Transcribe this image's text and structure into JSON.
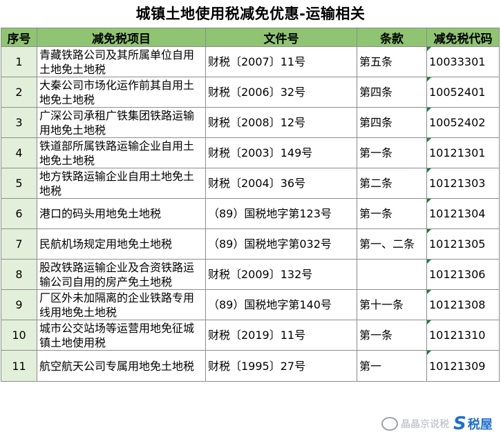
{
  "title": "城镇土地使用税减免优惠-运输相关",
  "headers": [
    "序号",
    "减免税项目",
    "文件号",
    "条款",
    "减免税代码"
  ],
  "rows": [
    {
      "seq": "1",
      "item": "青藏铁路公司及其所属单位自用土地免土地税",
      "doc": "财税〔2007〕11号",
      "clause": "第五条",
      "code": "10033301"
    },
    {
      "seq": "2",
      "item": "大秦公司市场化运作前其自用土地免土地税",
      "doc": "财税〔2006〕32号",
      "clause": "第四条",
      "code": "10052401"
    },
    {
      "seq": "3",
      "item": "广深公司承租广铁集团铁路运输用地免土地税",
      "doc": "财税〔2008〕12号",
      "clause": "第四条",
      "code": "10052402"
    },
    {
      "seq": "4",
      "item": "铁道部所属铁路运输企业自用土地免土地税",
      "doc": "财税〔2003〕149号",
      "clause": "第一条",
      "code": "10121301"
    },
    {
      "seq": "5",
      "item": "地方铁路运输企业自用土地免土地税",
      "doc": "财税〔2004〕36号",
      "clause": "第二条",
      "code": "10121303"
    },
    {
      "seq": "6",
      "item": "港口的码头用地免土地税",
      "doc": "（89）国税地字第123号",
      "clause": "第一条",
      "code": "10121304"
    },
    {
      "seq": "7",
      "item": "民航机场规定用地免土地税",
      "doc": "（89）国税地字第032号",
      "clause": "第一、二条",
      "code": "10121305"
    },
    {
      "seq": "8",
      "item": "股改铁路运输企业及合资铁路运输公司自用的房产免土地税",
      "doc": "财税〔2009〕132号",
      "clause": "",
      "code": "10121306"
    },
    {
      "seq": "9",
      "item": "厂区外未加隔离的企业铁路专用线用地免土地税",
      "doc": "（89）国税地字第140号",
      "clause": "第十一条",
      "code": "10121308"
    },
    {
      "seq": "10",
      "item": "城市公交站场等运营用地免征城镇土地使用税",
      "doc": "财税〔2019〕11号",
      "clause": "第一条",
      "code": "10121310"
    },
    {
      "seq": "11",
      "item": "航空航天公司专属用地免土地税",
      "doc": "财税〔1995〕27号",
      "clause": "第一",
      "code": "10121309"
    }
  ],
  "watermark": {
    "text": "晶晶京说税",
    "logo_letter": "S",
    "logo_name": "税屋"
  }
}
